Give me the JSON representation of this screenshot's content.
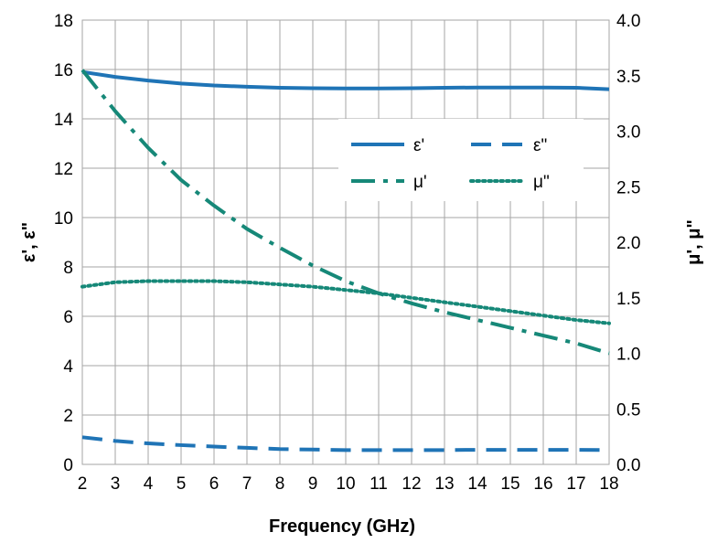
{
  "chart_data": {
    "type": "line",
    "title": "",
    "xlabel": "Frequency (GHz)",
    "ylabel_left": "ε', ε\"",
    "ylabel_right": "μ', μ\"",
    "xlim": [
      2,
      18
    ],
    "ylim_left": [
      0,
      18
    ],
    "ylim_right": [
      0.0,
      4.0
    ],
    "x_ticks": [
      "2",
      "3",
      "4",
      "5",
      "6",
      "7",
      "8",
      "9",
      "10",
      "11",
      "12",
      "13",
      "14",
      "15",
      "16",
      "17",
      "18"
    ],
    "y_ticks_left": [
      "0",
      "2",
      "4",
      "6",
      "8",
      "10",
      "12",
      "14",
      "16",
      "18"
    ],
    "y_ticks_right": [
      "0.0",
      "0.5",
      "1.0",
      "1.5",
      "2.0",
      "2.5",
      "3.0",
      "3.5",
      "4.0"
    ],
    "grid": true,
    "legend_position": "upper-right",
    "colors": {
      "epsilon": "#1f74b6",
      "mu": "#168878",
      "grid": "#a6a6a6"
    },
    "series": [
      {
        "name": "ε'",
        "axis": "left",
        "style": "solid",
        "color": "#1f74b6",
        "x": [
          2,
          3,
          4,
          5,
          6,
          7,
          8,
          9,
          10,
          11,
          12,
          13,
          14,
          15,
          16,
          17,
          18
        ],
        "y": [
          15.9,
          15.7,
          15.55,
          15.43,
          15.35,
          15.3,
          15.26,
          15.24,
          15.23,
          15.23,
          15.24,
          15.26,
          15.27,
          15.27,
          15.27,
          15.26,
          15.2
        ]
      },
      {
        "name": "ε\"",
        "axis": "left",
        "style": "dashed",
        "color": "#1f74b6",
        "x": [
          2,
          3,
          4,
          5,
          6,
          7,
          8,
          9,
          10,
          11,
          12,
          13,
          14,
          15,
          16,
          17,
          18
        ],
        "y": [
          1.1,
          0.95,
          0.85,
          0.78,
          0.72,
          0.67,
          0.62,
          0.6,
          0.58,
          0.58,
          0.58,
          0.58,
          0.59,
          0.59,
          0.59,
          0.59,
          0.58
        ]
      },
      {
        "name": "μ'",
        "axis": "right",
        "style": "dashdot",
        "color": "#168878",
        "x": [
          2,
          3,
          4,
          5,
          6,
          7,
          8,
          9,
          10,
          11,
          12,
          13,
          14,
          15,
          16,
          17,
          18
        ],
        "y": [
          3.55,
          3.18,
          2.85,
          2.56,
          2.33,
          2.12,
          1.95,
          1.79,
          1.65,
          1.54,
          1.45,
          1.37,
          1.3,
          1.23,
          1.16,
          1.09,
          1.0
        ]
      },
      {
        "name": "μ\"",
        "axis": "right",
        "style": "dotted",
        "color": "#168878",
        "x": [
          2,
          3,
          4,
          5,
          6,
          7,
          8,
          9,
          10,
          11,
          12,
          13,
          14,
          15,
          16,
          17,
          18
        ],
        "y": [
          1.6,
          1.64,
          1.65,
          1.65,
          1.65,
          1.64,
          1.62,
          1.6,
          1.57,
          1.54,
          1.5,
          1.46,
          1.42,
          1.38,
          1.34,
          1.3,
          1.27
        ]
      }
    ]
  }
}
